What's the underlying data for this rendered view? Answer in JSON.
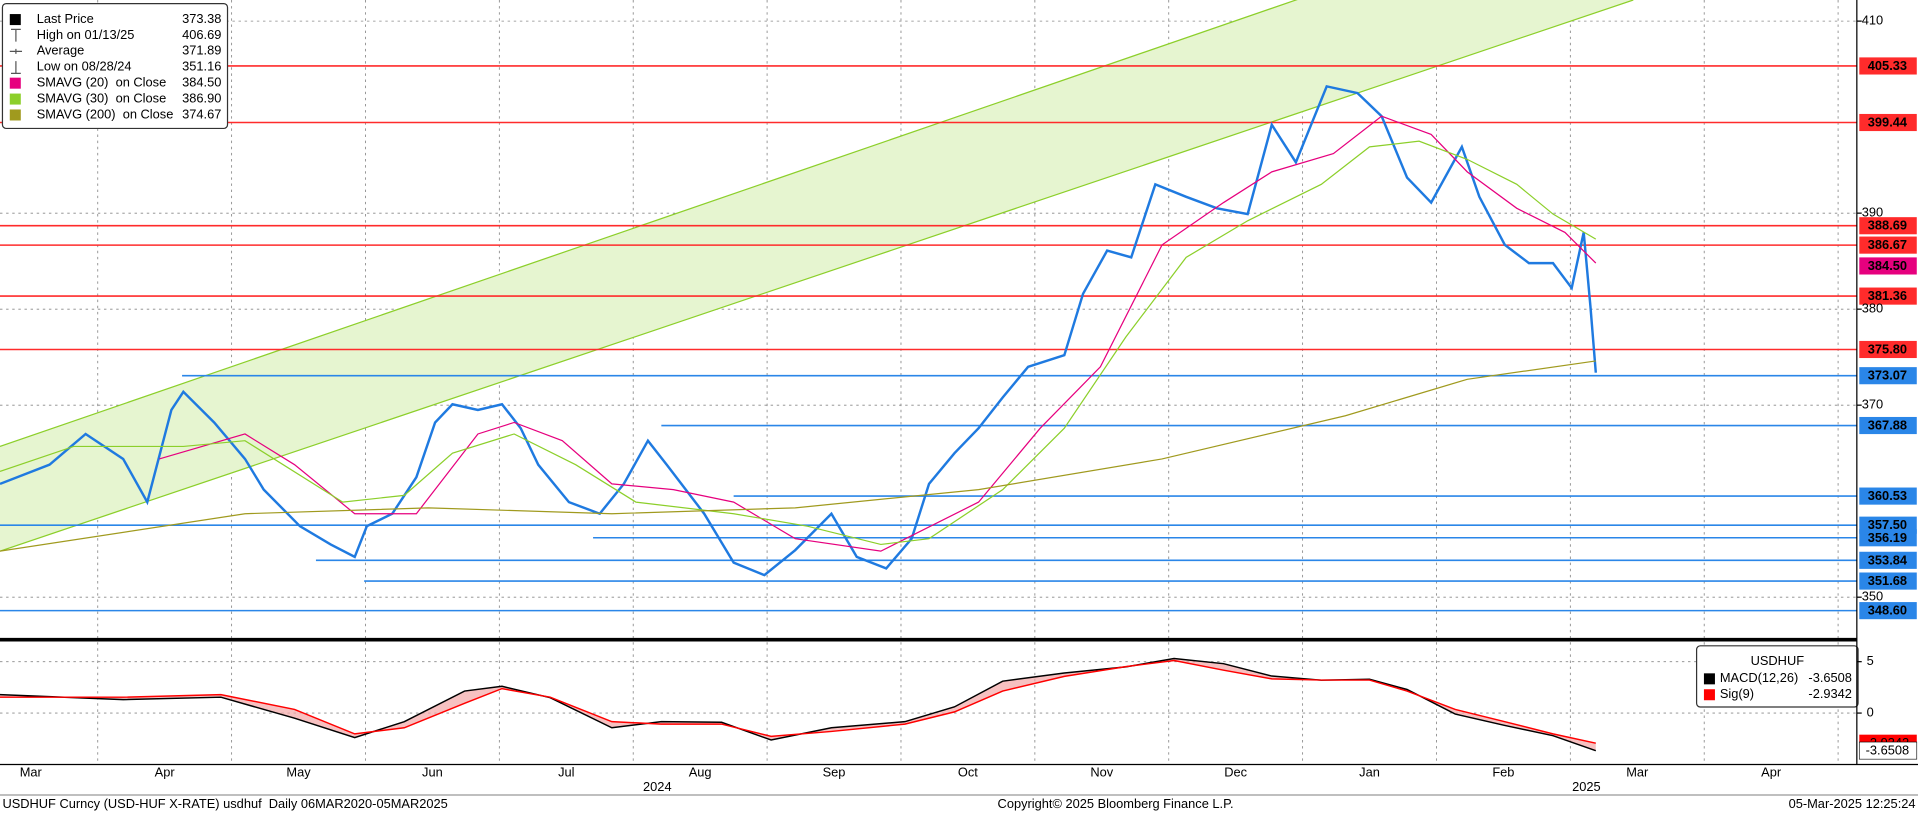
{
  "chart_data": [
    {
      "type": "line",
      "xlim": [
        0.27,
        14.14
      ],
      "xticks": [
        {
          "value": 0.5,
          "label": "Mar"
        },
        {
          "value": 1.5,
          "label": "Apr"
        },
        {
          "value": 2.5,
          "label": "May"
        },
        {
          "value": 3.5,
          "label": "Jun"
        },
        {
          "value": 4.5,
          "label": "Jul"
        },
        {
          "value": 5.5,
          "label": "Aug"
        },
        {
          "value": 6.5,
          "label": "Sep"
        },
        {
          "value": 7.5,
          "label": "Oct"
        },
        {
          "value": 8.5,
          "label": "Nov"
        },
        {
          "value": 9.5,
          "label": "Dec"
        },
        {
          "value": 10.5,
          "label": "Jan"
        },
        {
          "value": 11.5,
          "label": "Feb"
        },
        {
          "value": 12.5,
          "label": "Mar"
        },
        {
          "value": 13.5,
          "label": "Apr"
        }
      ],
      "xgrid": [
        1,
        2,
        3,
        4,
        5,
        6,
        7,
        8,
        9,
        10,
        11,
        12,
        13,
        14
      ],
      "annotations": [
        {
          "text": "2024",
          "x": 5.18
        },
        {
          "text": "2025",
          "x": 12.12
        }
      ],
      "ylim": [
        345.7,
        412.2
      ],
      "yticks": [
        350,
        370,
        380,
        390,
        410
      ],
      "grid": true,
      "legend": "upper left",
      "legend_rows": [
        {
          "name": "Last Price",
          "value": 373.38,
          "marker": "square",
          "color": "#000000"
        },
        {
          "name": "High on 01/13/25",
          "value": 406.69,
          "marker": "high",
          "color": "#555555"
        },
        {
          "name": "Average",
          "value": 371.89,
          "marker": "avg",
          "color": "#555555"
        },
        {
          "name": "Low on 08/28/24",
          "value": 351.16,
          "marker": "low",
          "color": "#555555"
        },
        {
          "name": "SMAVG (20)  on Close",
          "value": 384.5,
          "label": "384.50",
          "marker": "square",
          "color": "#e6007e"
        },
        {
          "name": "SMAVG (30)  on Close",
          "value": 386.9,
          "label": "386.90",
          "marker": "square",
          "color": "#8ccf2a"
        },
        {
          "name": "SMAVG (200)  on Close",
          "value": 374.67,
          "marker": "square",
          "color": "#a09a1e"
        }
      ],
      "series": [
        {
          "color": "#1f7ae0",
          "width": 2,
          "x": [
            0.27,
            0.64,
            0.91,
            1.19,
            1.37,
            1.55,
            1.64,
            1.87,
            2.1,
            2.24,
            2.51,
            2.74,
            2.92,
            3.01,
            3.2,
            3.38,
            3.52,
            3.65,
            3.84,
            4.02,
            4.16,
            4.29,
            4.52,
            4.75,
            4.93,
            5.11,
            5.25,
            5.53,
            5.75,
            5.98,
            6.21,
            6.48,
            6.67,
            6.89,
            7.08,
            7.21,
            7.4,
            7.58,
            7.76,
            7.95,
            8.22,
            8.36,
            8.54,
            8.72,
            8.9,
            9.13,
            9.36,
            9.59,
            9.77,
            9.95,
            10.18,
            10.41,
            10.59,
            10.78,
            10.96,
            11.19,
            11.32,
            11.51,
            11.69,
            11.87,
            12.01,
            12.1,
            12.15,
            12.19
          ],
          "values": [
            361.8,
            363.8,
            367,
            364.4,
            359.9,
            369.5,
            371.4,
            368.2,
            364.4,
            361.2,
            357.4,
            355.5,
            354.2,
            357.4,
            358.7,
            362.5,
            368.2,
            370.1,
            369.5,
            370.1,
            367.6,
            363.8,
            359.9,
            358.7,
            361.8,
            366.3,
            363.8,
            358.7,
            353.6,
            352.3,
            354.9,
            358.7,
            354.2,
            353,
            356.1,
            361.8,
            365,
            367.6,
            370.8,
            374,
            375.2,
            381.6,
            386.1,
            385.4,
            393,
            391.7,
            390.5,
            389.9,
            399.2,
            395.3,
            403.2,
            402.5,
            400.1,
            393.7,
            391.1,
            396.9,
            391.7,
            386.7,
            384.8,
            384.8,
            382.2,
            388,
            380.3,
            373.38
          ]
        },
        {
          "color": "#e6007e",
          "width": 1,
          "x": [
            1.46,
            2.1,
            2.47,
            2.92,
            3.38,
            3.84,
            4.11,
            4.47,
            4.84,
            5.3,
            5.75,
            6.21,
            6.85,
            7.12,
            7.58,
            8.04,
            8.49,
            8.95,
            9.41,
            9.77,
            10.23,
            10.59,
            10.96,
            11.23,
            11.6,
            11.96,
            12.19
          ],
          "values": [
            364.4,
            367,
            363.8,
            358.7,
            358.7,
            367,
            368.2,
            366.3,
            361.8,
            361.2,
            359.9,
            356.1,
            354.8,
            356.7,
            359.9,
            367.6,
            374,
            386.7,
            391.1,
            394.3,
            396.2,
            400.1,
            398.2,
            394.3,
            390.5,
            388,
            384.8
          ]
        },
        {
          "color": "#8ccf2a",
          "width": 1,
          "x": [
            0.27,
            0.82,
            1.64,
            2.1,
            2.83,
            3.29,
            3.65,
            4.11,
            4.57,
            5.02,
            5.75,
            6.3,
            6.85,
            7.21,
            7.76,
            8.22,
            8.68,
            9.13,
            9.59,
            10.14,
            10.5,
            10.87,
            11.23,
            11.6,
            11.87,
            12.19
          ],
          "values": [
            363.1,
            365.7,
            365.7,
            366.3,
            359.9,
            360.6,
            365,
            367,
            363.8,
            359.9,
            358.7,
            357.4,
            355.5,
            356.1,
            361.2,
            367.6,
            377.1,
            385.4,
            389.2,
            393,
            396.9,
            397.5,
            395.6,
            393,
            389.9,
            387.3
          ]
        },
        {
          "color": "#a09a1e",
          "width": 1,
          "x": [
            0.27,
            2.1,
            3.47,
            4.84,
            6.21,
            7.58,
            8.95,
            10.32,
            11.23,
            12.19
          ],
          "values": [
            354.8,
            358.7,
            359.3,
            358.7,
            359.3,
            361.2,
            364.4,
            368.9,
            372.7,
            374.6
          ]
        }
      ],
      "channel": {
        "color": "#8ccf2a",
        "fill": "#e6f5d0",
        "lines": [
          {
            "x": [
              0.27,
              12.47
            ],
            "values": [
              354.8,
              412.2
            ]
          },
          {
            "x": [
              0.27,
              9.95
            ],
            "values": [
              365.7,
              412.2
            ]
          }
        ]
      },
      "levels": [
        {
          "color": "#ff2b2b",
          "values": [
            405.33,
            399.44,
            388.69,
            386.67,
            381.36,
            375.8
          ],
          "value_labels": [
            "405.33",
            "399.44",
            "388.69",
            "386.67",
            "381.36",
            "375.80"
          ]
        },
        {
          "color": "#2a86e8",
          "values": [
            373.07,
            367.88,
            360.53,
            357.5,
            356.19,
            353.84,
            351.68,
            348.6
          ],
          "value_labels": [
            "373.07",
            "367.88",
            "360.53",
            "357.50",
            "356.19",
            "353.84",
            "351.68",
            "348.60"
          ],
          "x_start": [
            1.63,
            5.21,
            5.75,
            0.27,
            4.7,
            2.63,
            2.99,
            0.27
          ]
        }
      ],
      "tag_rows": [
        4
      ]
    },
    {
      "type": "line",
      "title": "USDHUF",
      "ylim": [
        -5,
        6.9
      ],
      "yticks": [
        0,
        5
      ],
      "x": [
        0.27,
        1.19,
        1.92,
        2.47,
        2.92,
        3.29,
        3.74,
        4.02,
        4.38,
        4.84,
        5.21,
        5.66,
        6.03,
        6.48,
        7.03,
        7.4,
        7.76,
        8.22,
        8.68,
        9.04,
        9.41,
        9.77,
        10.14,
        10.5,
        10.78,
        11.14,
        11.51,
        11.87,
        12.19
      ],
      "fill_between": "#f4a6a6",
      "series": [
        {
          "name": "MACD(12,26)",
          "color": "#000000",
          "values": [
            1.79,
            1.31,
            1.55,
            -0.5,
            -2.38,
            -0.83,
            2.14,
            2.6,
            1.5,
            -1.43,
            -0.83,
            -0.9,
            -2.62,
            -1.43,
            -0.83,
            0.6,
            3.1,
            3.9,
            4.5,
            5.3,
            4.8,
            3.6,
            3.2,
            3.3,
            2.3,
            -0.1,
            -1.2,
            -2.2,
            -3.6508
          ]
        },
        {
          "name": "Sig(9)",
          "color": "#ff0000",
          "values": [
            1.55,
            1.55,
            1.79,
            0.36,
            -2.02,
            -1.43,
            0.95,
            2.38,
            1.55,
            -0.83,
            -1.07,
            -1.07,
            -2.26,
            -1.79,
            -1.07,
            0.12,
            2.14,
            3.57,
            4.52,
            5.12,
            4.17,
            3.33,
            3.21,
            3.21,
            2.14,
            0.36,
            -0.83,
            -2.02,
            -2.9342
          ]
        }
      ]
    }
  ],
  "footer": {
    "left": "USDHUF Curncy (USD-HUF X-RATE) usdhuf  Daily 06MAR2020-05MAR2025",
    "center": "Copyright© 2025 Bloomberg Finance L.P.",
    "right": "05-Mar-2025 12:25:24"
  }
}
